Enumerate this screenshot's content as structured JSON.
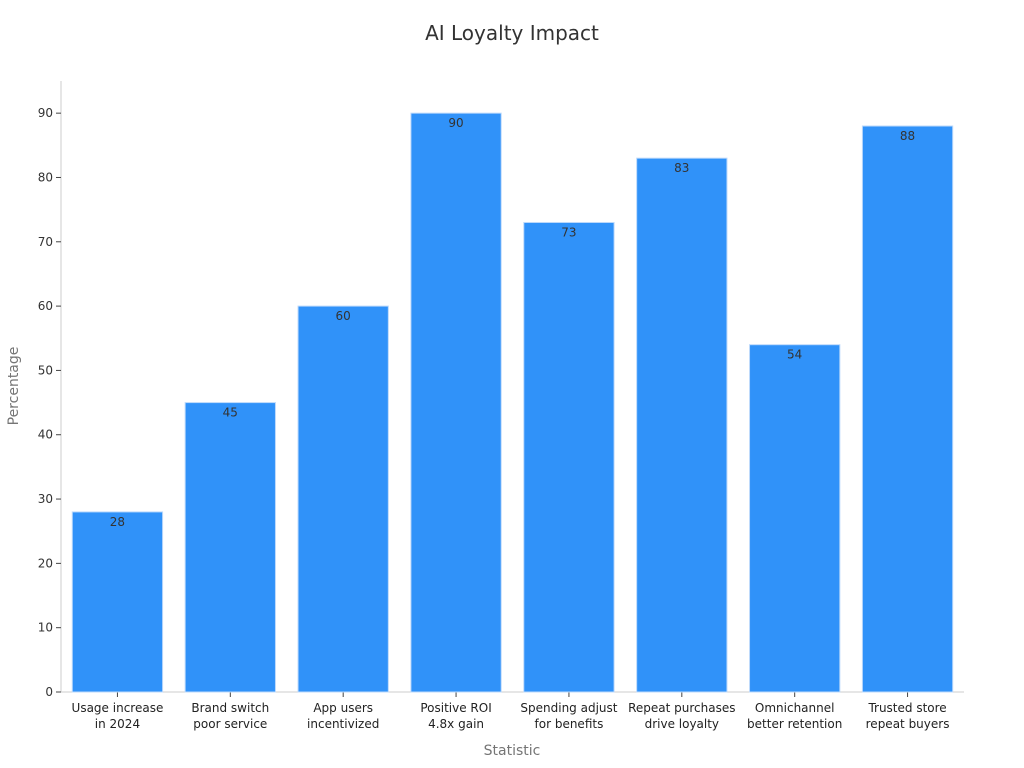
{
  "chart_data": {
    "type": "bar",
    "title": "AI Loyalty Impact",
    "xlabel": "Statistic",
    "ylabel": "Percentage",
    "ylim": [
      0,
      95
    ],
    "yticks": [
      0,
      10,
      20,
      30,
      40,
      50,
      60,
      70,
      80,
      90
    ],
    "grid": false,
    "bar_color": "#3092f9",
    "categories": [
      [
        "Usage increase",
        "in 2024"
      ],
      [
        "Brand switch",
        "poor service"
      ],
      [
        "App users",
        "incentivized"
      ],
      [
        "Positive ROI",
        "4.8x gain"
      ],
      [
        "Spending adjust",
        "for benefits"
      ],
      [
        "Repeat purchases",
        "drive loyalty"
      ],
      [
        "Omnichannel",
        "better retention"
      ],
      [
        "Trusted store",
        "repeat buyers"
      ]
    ],
    "values": [
      28,
      45,
      60,
      90,
      73,
      83,
      54,
      88
    ]
  }
}
